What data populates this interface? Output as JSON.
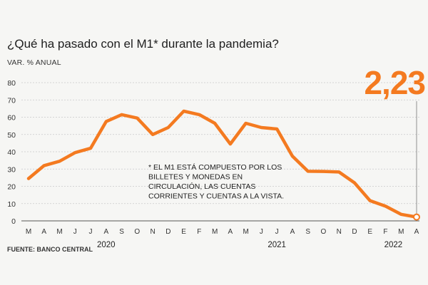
{
  "chart_data": {
    "type": "line",
    "title": "¿Qué ha pasado con el M1* durante la pandemia?",
    "ylabel": "VAR. % ANUAL",
    "xlabel": "",
    "ylim": [
      0,
      80
    ],
    "yticks": [
      0,
      10,
      20,
      30,
      40,
      50,
      60,
      70,
      80
    ],
    "grid": true,
    "categories": [
      "M",
      "A",
      "M",
      "J",
      "J",
      "A",
      "S",
      "O",
      "N",
      "D",
      "E",
      "F",
      "M",
      "A",
      "M",
      "J",
      "J",
      "A",
      "S",
      "O",
      "N",
      "D",
      "E",
      "F",
      "M",
      "A"
    ],
    "years": [
      {
        "label": "2020",
        "under_index": 5
      },
      {
        "label": "2021",
        "under_index": 16
      },
      {
        "label": "2022",
        "under_index": 23.5
      }
    ],
    "series": [
      {
        "name": "M1",
        "color": "#f47a20",
        "values": [
          24.5,
          32,
          34.5,
          39.5,
          42,
          57.5,
          61.5,
          59.5,
          50,
          54,
          63.5,
          61.5,
          56.5,
          44.5,
          56.5,
          54,
          53.2,
          37.5,
          28.7,
          28.6,
          28.3,
          22,
          11.7,
          8.5,
          3.8,
          2.23
        ]
      }
    ],
    "highlight": {
      "label": "2,23",
      "value": 2.23,
      "index": 25,
      "color": "#f47a20"
    },
    "annotation": "* EL M1 ESTÁ COMPUESTO POR LOS BILLETES Y MONEDAS EN CIRCULACIÓN, LAS CUENTAS CORRIENTES Y CUENTAS A LA VISTA.",
    "annotation_lines": [
      "* EL M1 ESTÁ COMPUESTO POR LOS",
      "BILLETES Y MONEDAS EN",
      "CIRCULACIÓN, LAS CUENTAS",
      "CORRIENTES Y CUENTAS A LA VISTA."
    ],
    "source": "FUENTE: BANCO CENTRAL"
  }
}
